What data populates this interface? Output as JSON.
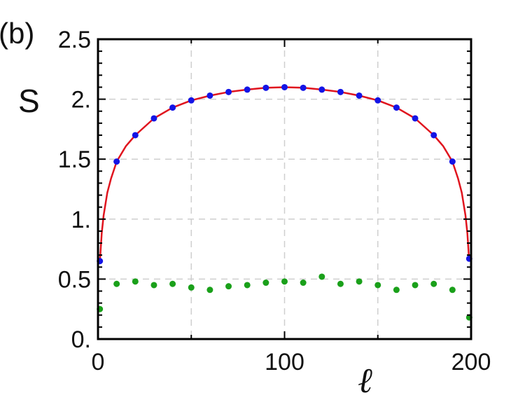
{
  "chart_data": {
    "type": "scatter",
    "panel_label": "(b)",
    "title": "",
    "xlabel": "ℓ",
    "ylabel": "S",
    "xlim": [
      0,
      200
    ],
    "ylim": [
      0,
      2.5
    ],
    "xticks": [
      0,
      100,
      200
    ],
    "xtick_labels": [
      "0",
      "100",
      "200"
    ],
    "yticks": [
      0,
      0.5,
      1.0,
      1.5,
      2.0,
      2.5
    ],
    "ytick_labels": [
      "0.",
      "0.5",
      "1.",
      "1.5",
      "2.",
      "2.5"
    ],
    "grid": true,
    "legend": "none",
    "series": [
      {
        "kind": "curve",
        "color": "#e0141e",
        "x": [
          1,
          2,
          3,
          5,
          7,
          10,
          15,
          20,
          30,
          40,
          50,
          60,
          70,
          80,
          90,
          100,
          110,
          120,
          130,
          140,
          150,
          160,
          170,
          180,
          185,
          190,
          193,
          195,
          197,
          198,
          199
        ],
        "y": [
          0.65,
          0.88,
          1.03,
          1.22,
          1.34,
          1.48,
          1.61,
          1.7,
          1.84,
          1.93,
          1.99,
          2.03,
          2.06,
          2.08,
          2.095,
          2.1,
          2.095,
          2.08,
          2.06,
          2.03,
          1.99,
          1.93,
          1.84,
          1.7,
          1.61,
          1.48,
          1.34,
          1.22,
          1.03,
          0.88,
          0.65
        ]
      },
      {
        "kind": "points",
        "color": "#1414e6",
        "x": [
          1,
          10,
          20,
          30,
          40,
          50,
          60,
          70,
          80,
          90,
          100,
          110,
          120,
          130,
          140,
          150,
          160,
          170,
          180,
          190,
          199
        ],
        "y": [
          0.65,
          1.48,
          1.7,
          1.84,
          1.93,
          1.99,
          2.03,
          2.06,
          2.08,
          2.095,
          2.1,
          2.095,
          2.08,
          2.06,
          2.03,
          1.99,
          1.93,
          1.84,
          1.7,
          1.48,
          0.67
        ]
      },
      {
        "kind": "points",
        "color": "#1aa01a",
        "x": [
          1,
          10,
          20,
          30,
          40,
          50,
          60,
          70,
          80,
          90,
          100,
          110,
          120,
          130,
          140,
          150,
          160,
          170,
          180,
          190,
          199
        ],
        "y": [
          0.25,
          0.46,
          0.48,
          0.45,
          0.46,
          0.43,
          0.41,
          0.44,
          0.45,
          0.47,
          0.48,
          0.47,
          0.52,
          0.46,
          0.48,
          0.45,
          0.41,
          0.45,
          0.46,
          0.41,
          0.18
        ]
      }
    ]
  }
}
